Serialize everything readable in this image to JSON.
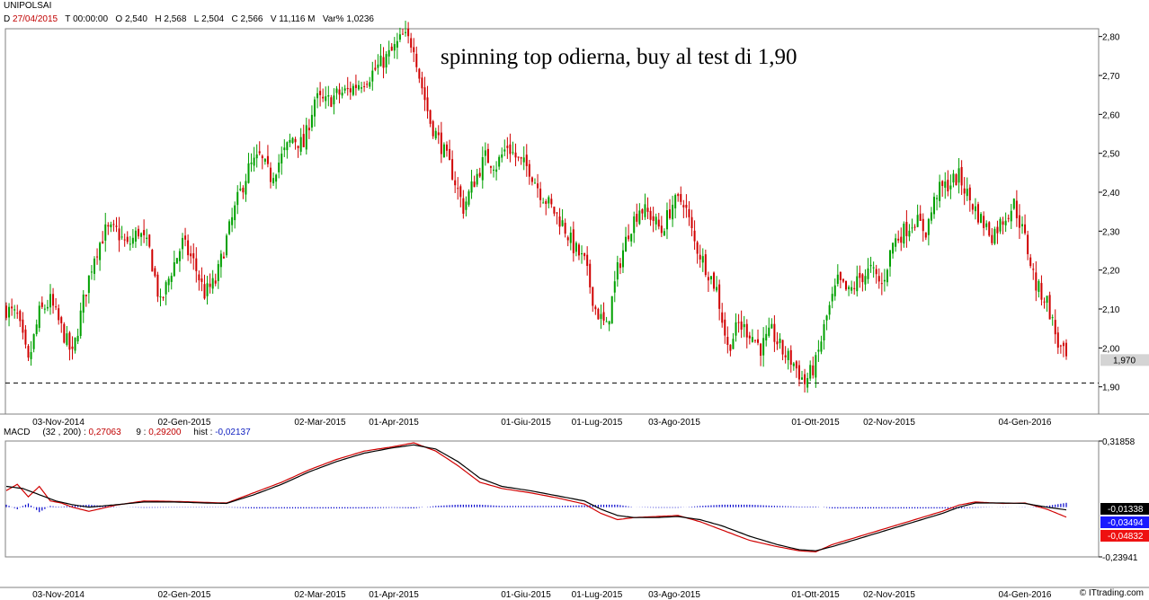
{
  "symbol": "UNIPOLSAI",
  "quote": {
    "d_label": "D",
    "date": "27/04/2015",
    "t_label": "T",
    "time": "00:00:00",
    "o_label": "O",
    "open": "2,540",
    "h_label": "H",
    "high": "2,568",
    "l_label": "L",
    "low": "2,504",
    "c_label": "C",
    "close": "2,566",
    "v_label": "V",
    "volume": "11,116 M",
    "var_label": "Var%",
    "var": "1,0236"
  },
  "macd_header": {
    "name": "MACD",
    "params": "(32 , 200) :",
    "macd_value": "0,27063",
    "signal_period": "9 :",
    "signal_value": "0,29200",
    "hist_label": "hist :",
    "hist_value": "-0,02137"
  },
  "credit": "© ITtrading.com",
  "colors": {
    "up": "#00a000",
    "down": "#d00000",
    "macd_line": "#000000",
    "signal_line": "#d00000",
    "hist": "#0000cc"
  },
  "chart_data": [
    {
      "type": "candlestick",
      "annotation": "spinning top odierna, buy al test di 1,90",
      "x_labels": [
        "03-Nov-2014",
        "02-Gen-2015",
        "02-Mar-2015",
        "01-Apr-2015",
        "01-Giu-2015",
        "01-Lug-2015",
        "03-Ago-2015",
        "01-Ott-2015",
        "02-Nov-2015",
        "04-Gen-2016"
      ],
      "y_ticks": [
        "2,80",
        "2,70",
        "2,60",
        "2,50",
        "2,40",
        "2,30",
        "2,20",
        "2,10",
        "2,00",
        "1,90"
      ],
      "ylim": [
        1.83,
        2.82
      ],
      "last_price_label": "1,970",
      "horizontal_line": 1.91,
      "close_path": [
        [
          0,
          2.1
        ],
        [
          4,
          2.08
        ],
        [
          8,
          1.96
        ],
        [
          12,
          2.09
        ],
        [
          16,
          2.12
        ],
        [
          20,
          2.05
        ],
        [
          24,
          1.98
        ],
        [
          28,
          2.12
        ],
        [
          32,
          2.24
        ],
        [
          36,
          2.3
        ],
        [
          40,
          2.3
        ],
        [
          44,
          2.26
        ],
        [
          48,
          2.3
        ],
        [
          52,
          2.25
        ],
        [
          56,
          2.11
        ],
        [
          60,
          2.2
        ],
        [
          64,
          2.27
        ],
        [
          68,
          2.22
        ],
        [
          72,
          2.14
        ],
        [
          76,
          2.17
        ],
        [
          80,
          2.28
        ],
        [
          84,
          2.38
        ],
        [
          88,
          2.46
        ],
        [
          92,
          2.49
        ],
        [
          96,
          2.44
        ],
        [
          100,
          2.49
        ],
        [
          104,
          2.54
        ],
        [
          108,
          2.52
        ],
        [
          112,
          2.64
        ],
        [
          116,
          2.63
        ],
        [
          120,
          2.65
        ],
        [
          124,
          2.66
        ],
        [
          128,
          2.68
        ],
        [
          132,
          2.7
        ],
        [
          136,
          2.73
        ],
        [
          140,
          2.76
        ],
        [
          144,
          2.8
        ],
        [
          148,
          2.78
        ],
        [
          150,
          2.7
        ],
        [
          154,
          2.58
        ],
        [
          158,
          2.52
        ],
        [
          162,
          2.45
        ],
        [
          166,
          2.36
        ],
        [
          170,
          2.43
        ],
        [
          174,
          2.49
        ],
        [
          178,
          2.47
        ],
        [
          182,
          2.52
        ],
        [
          186,
          2.48
        ],
        [
          190,
          2.46
        ],
        [
          194,
          2.4
        ],
        [
          198,
          2.36
        ],
        [
          202,
          2.32
        ],
        [
          206,
          2.26
        ],
        [
          210,
          2.22
        ],
        [
          214,
          2.1
        ],
        [
          218,
          2.05
        ],
        [
          222,
          2.2
        ],
        [
          226,
          2.3
        ],
        [
          230,
          2.36
        ],
        [
          234,
          2.34
        ],
        [
          238,
          2.3
        ],
        [
          242,
          2.37
        ],
        [
          246,
          2.38
        ],
        [
          250,
          2.27
        ],
        [
          254,
          2.21
        ],
        [
          258,
          2.15
        ],
        [
          262,
          2.0
        ],
        [
          266,
          2.06
        ],
        [
          270,
          2.04
        ],
        [
          274,
          2.0
        ],
        [
          278,
          2.04
        ],
        [
          282,
          1.99
        ],
        [
          286,
          1.96
        ],
        [
          290,
          1.91
        ],
        [
          294,
          1.96
        ],
        [
          298,
          2.08
        ],
        [
          302,
          2.17
        ],
        [
          306,
          2.14
        ],
        [
          310,
          2.18
        ],
        [
          314,
          2.2
        ],
        [
          318,
          2.16
        ],
        [
          322,
          2.27
        ],
        [
          326,
          2.3
        ],
        [
          330,
          2.33
        ],
        [
          334,
          2.3
        ],
        [
          338,
          2.4
        ],
        [
          342,
          2.42
        ],
        [
          346,
          2.44
        ],
        [
          350,
          2.38
        ],
        [
          354,
          2.33
        ],
        [
          358,
          2.29
        ],
        [
          362,
          2.33
        ],
        [
          366,
          2.37
        ],
        [
          370,
          2.28
        ],
        [
          374,
          2.16
        ],
        [
          378,
          2.12
        ],
        [
          382,
          2.01
        ],
        [
          385,
          1.97
        ]
      ]
    },
    {
      "type": "line",
      "series": [
        {
          "name": "MACD"
        },
        {
          "name": "9"
        },
        {
          "name": "hist"
        }
      ],
      "y_ticks": [
        "0,31858",
        "-0,23941"
      ],
      "ylim": [
        -0.23941,
        0.31858
      ],
      "value_labels": [
        "-0,01338",
        "-0,03494",
        "-0,04832"
      ],
      "macd_path": [
        [
          0,
          0.1
        ],
        [
          6,
          0.09
        ],
        [
          12,
          0.06
        ],
        [
          18,
          0.03
        ],
        [
          24,
          0.012
        ],
        [
          30,
          0.0
        ],
        [
          40,
          0.012
        ],
        [
          50,
          0.025
        ],
        [
          60,
          0.025
        ],
        [
          66,
          0.023
        ],
        [
          72,
          0.02
        ],
        [
          80,
          0.018
        ],
        [
          90,
          0.06
        ],
        [
          100,
          0.11
        ],
        [
          110,
          0.17
        ],
        [
          120,
          0.22
        ],
        [
          130,
          0.26
        ],
        [
          140,
          0.285
        ],
        [
          148,
          0.3
        ],
        [
          156,
          0.28
        ],
        [
          164,
          0.22
        ],
        [
          172,
          0.14
        ],
        [
          180,
          0.1
        ],
        [
          190,
          0.08
        ],
        [
          200,
          0.055
        ],
        [
          210,
          0.03
        ],
        [
          216,
          -0.01
        ],
        [
          222,
          -0.04
        ],
        [
          228,
          -0.05
        ],
        [
          236,
          -0.05
        ],
        [
          244,
          -0.045
        ],
        [
          252,
          -0.06
        ],
        [
          260,
          -0.09
        ],
        [
          270,
          -0.14
        ],
        [
          280,
          -0.18
        ],
        [
          288,
          -0.205
        ],
        [
          294,
          -0.21
        ],
        [
          300,
          -0.19
        ],
        [
          310,
          -0.15
        ],
        [
          320,
          -0.11
        ],
        [
          330,
          -0.07
        ],
        [
          340,
          -0.03
        ],
        [
          346,
          0.0
        ],
        [
          352,
          0.02
        ],
        [
          362,
          0.02
        ],
        [
          370,
          0.018
        ],
        [
          378,
          0.0
        ],
        [
          385,
          -0.013
        ]
      ],
      "signal_path": [
        [
          0,
          0.08
        ],
        [
          4,
          0.11
        ],
        [
          8,
          0.05
        ],
        [
          12,
          0.1
        ],
        [
          16,
          0.03
        ],
        [
          20,
          0.02
        ],
        [
          24,
          0.0
        ],
        [
          30,
          -0.02
        ],
        [
          40,
          0.01
        ],
        [
          50,
          0.03
        ],
        [
          60,
          0.028
        ],
        [
          66,
          0.026
        ],
        [
          72,
          0.023
        ],
        [
          80,
          0.02
        ],
        [
          90,
          0.07
        ],
        [
          100,
          0.12
        ],
        [
          110,
          0.18
        ],
        [
          120,
          0.23
        ],
        [
          130,
          0.27
        ],
        [
          140,
          0.29
        ],
        [
          148,
          0.31
        ],
        [
          156,
          0.27
        ],
        [
          164,
          0.2
        ],
        [
          172,
          0.12
        ],
        [
          180,
          0.09
        ],
        [
          190,
          0.07
        ],
        [
          200,
          0.045
        ],
        [
          210,
          0.015
        ],
        [
          216,
          -0.03
        ],
        [
          222,
          -0.06
        ],
        [
          228,
          -0.05
        ],
        [
          236,
          -0.045
        ],
        [
          244,
          -0.04
        ],
        [
          252,
          -0.07
        ],
        [
          260,
          -0.11
        ],
        [
          270,
          -0.16
        ],
        [
          280,
          -0.19
        ],
        [
          288,
          -0.21
        ],
        [
          294,
          -0.215
        ],
        [
          300,
          -0.18
        ],
        [
          310,
          -0.14
        ],
        [
          320,
          -0.1
        ],
        [
          330,
          -0.06
        ],
        [
          340,
          -0.02
        ],
        [
          346,
          0.01
        ],
        [
          352,
          0.025
        ],
        [
          362,
          0.018
        ],
        [
          370,
          0.02
        ],
        [
          378,
          -0.01
        ],
        [
          385,
          -0.048
        ]
      ]
    }
  ]
}
